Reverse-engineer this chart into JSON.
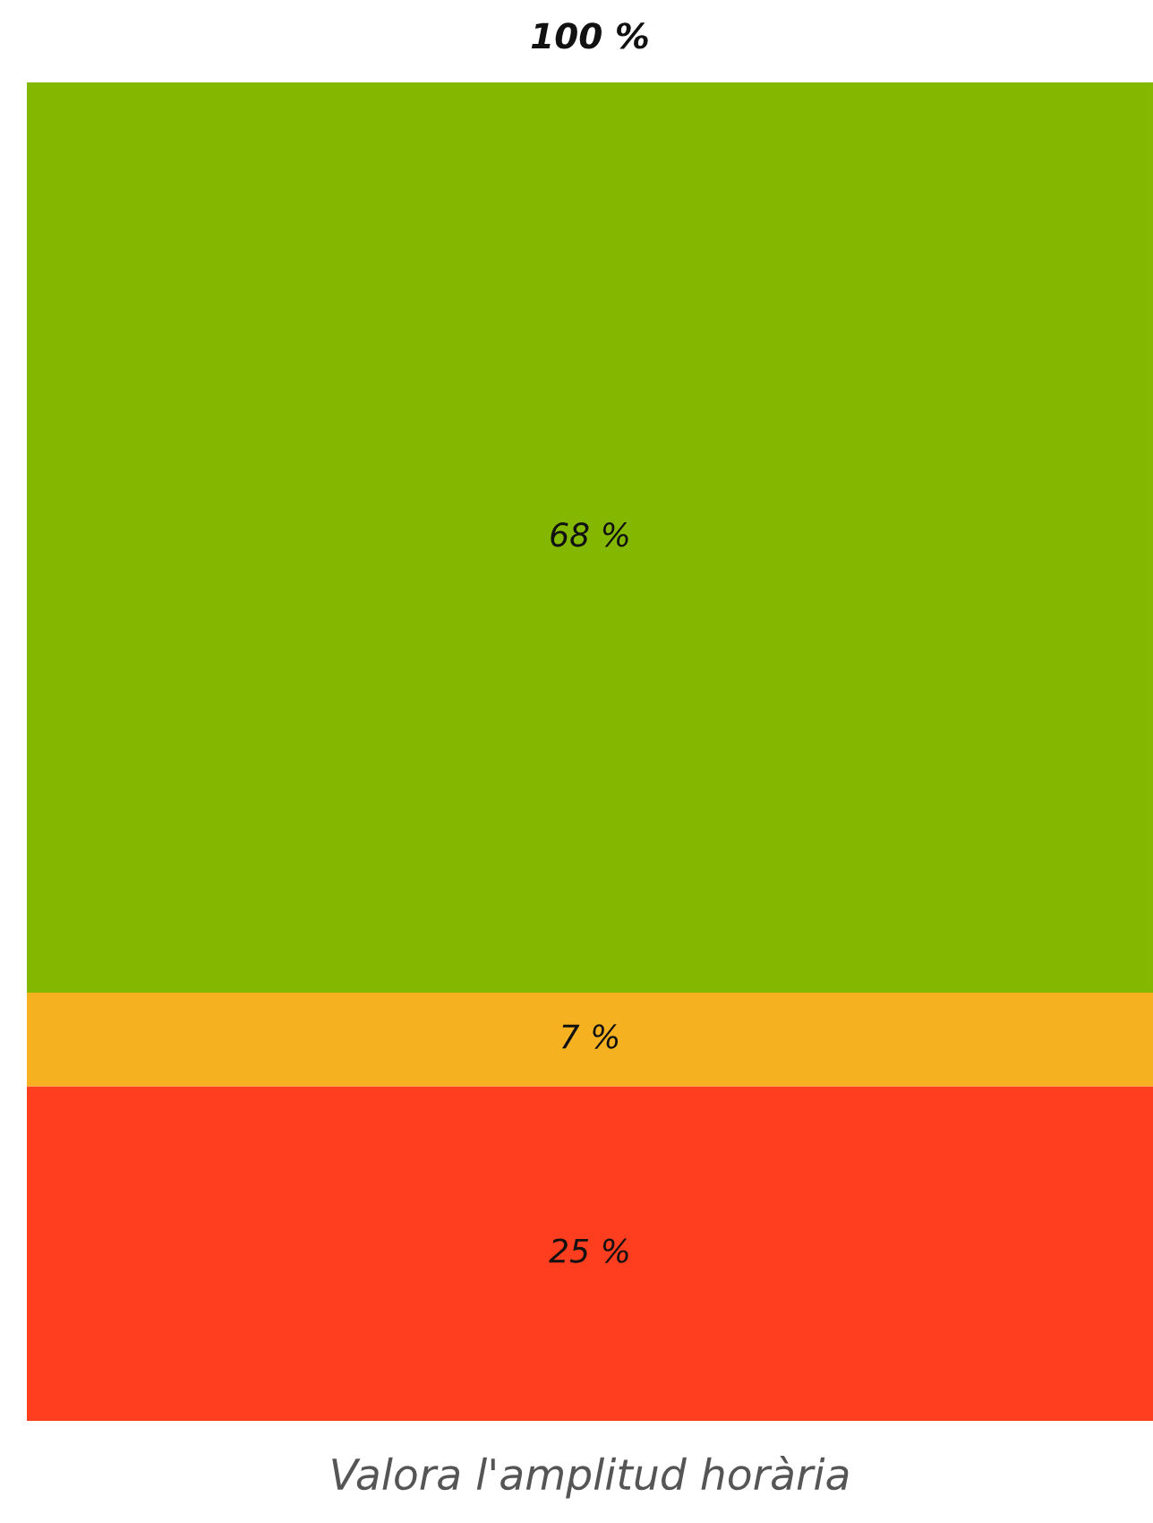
{
  "chart_data": {
    "type": "bar",
    "stacked": true,
    "categories": [
      null
    ],
    "xlabel": "Valora l'amplitud horària",
    "tick_labels": false,
    "grid": false,
    "legend": false,
    "series": [
      {
        "color": "#ff3d1f",
        "values": [
          25
        ],
        "value_labels": [
          "25 %"
        ]
      },
      {
        "color": "#f5b120",
        "values": [
          7
        ],
        "value_labels": [
          "7 %"
        ]
      },
      {
        "color": "#84b800",
        "values": [
          68
        ],
        "value_labels": [
          "68 %"
        ]
      }
    ],
    "totals": [
      "100 %"
    ]
  }
}
